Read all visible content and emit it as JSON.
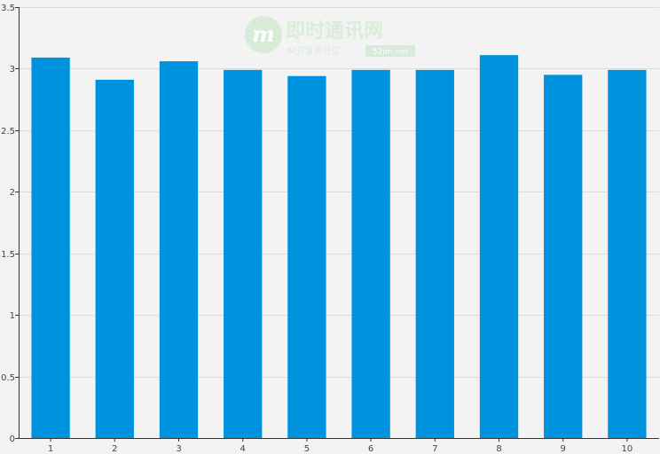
{
  "colors": {
    "bar": "#0093dd",
    "background": "#f3f3f3",
    "grid": "#dcdcdc",
    "axis": "#333333"
  },
  "watermark": {
    "logo_letter": "m",
    "title": "即时通讯网",
    "subtitle": "IM开发者社区",
    "site": "52im.net"
  },
  "chart_data": {
    "type": "bar",
    "title": "",
    "xlabel": "",
    "ylabel": "",
    "categories": [
      "1",
      "2",
      "3",
      "4",
      "5",
      "6",
      "7",
      "8",
      "9",
      "10"
    ],
    "values": [
      3.09,
      2.91,
      3.06,
      2.99,
      2.94,
      2.99,
      2.99,
      3.11,
      2.95,
      2.99
    ],
    "ylim": [
      0,
      3.5
    ],
    "yticks": [
      "0",
      "0.5",
      "1",
      "1.5",
      "2",
      "2.5",
      "3",
      "3.5"
    ],
    "grid": true
  }
}
